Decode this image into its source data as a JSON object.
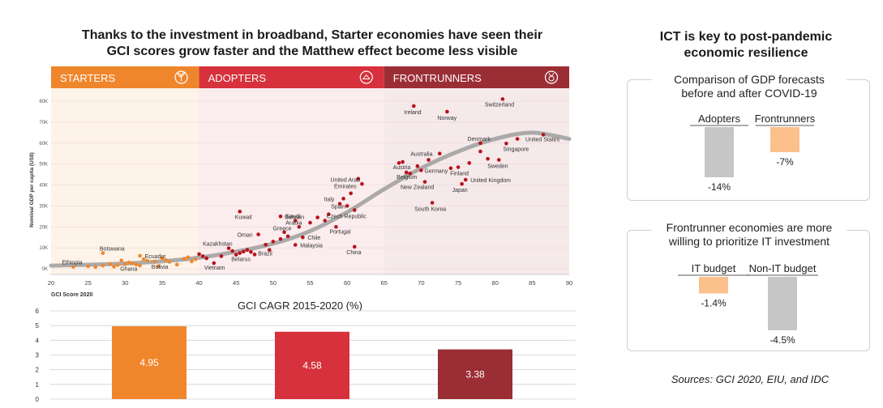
{
  "title": {
    "line1": "Thanks to the investment in broadband, Starter economies have seen their",
    "line2": "GCI scores grow faster and the Matthew effect become less visible"
  },
  "colors": {
    "starters": "#f0862c",
    "adopters": "#d6313c",
    "frontrunners": "#9b2d35",
    "starters_bg": "#fdf3e8",
    "adopters_bg": "#fbecee",
    "frontrunners_bg": "#f6e9ea",
    "dot": "#b8121c",
    "dot_starter": "#f0862c",
    "curve": "#9e9e9e",
    "gray_bar": "#c6c6c6",
    "orange_bar": "#fcc08d"
  },
  "bands": [
    {
      "label": "STARTERS",
      "icon": "plant-icon",
      "x_start": 20,
      "x_end": 40
    },
    {
      "label": "ADOPTERS",
      "icon": "network-icon",
      "x_start": 40,
      "x_end": 65
    },
    {
      "label": "FRONTRUNNERS",
      "icon": "medal-icon",
      "x_start": 65,
      "x_end": 90
    }
  ],
  "chart_data": [
    {
      "type": "scatter",
      "title": "",
      "xlabel": "GCI Score 2020",
      "ylabel": "Nominal GDP per capita (US$)",
      "xlim": [
        20,
        90
      ],
      "ylim": [
        0,
        80000
      ],
      "x_ticks": [
        "20",
        "25",
        "30",
        "35",
        "40",
        "45",
        "50",
        "55",
        "60",
        "65",
        "70",
        "75",
        "80",
        "85",
        "90"
      ],
      "y_ticks": [
        "0K",
        "10K",
        "20K",
        "30K",
        "40K",
        "50K",
        "60K",
        "70K",
        "80K"
      ],
      "trend_curve": [
        [
          20,
          1500
        ],
        [
          30,
          2500
        ],
        [
          38,
          4500
        ],
        [
          44,
          7500
        ],
        [
          50,
          12000
        ],
        [
          55,
          18000
        ],
        [
          60,
          27000
        ],
        [
          65,
          38000
        ],
        [
          70,
          48000
        ],
        [
          75,
          56000
        ],
        [
          80,
          62000
        ],
        [
          85,
          65000
        ],
        [
          90,
          62000
        ]
      ],
      "labeled_points": [
        {
          "name": "Ethiopia",
          "x": 23,
          "y": 900
        },
        {
          "name": "Botswana",
          "x": 27,
          "y": 7500
        },
        {
          "name": "Ecuador",
          "x": 32,
          "y": 6200
        },
        {
          "name": "Ghana",
          "x": 30,
          "y": 2200
        },
        {
          "name": "Bolivia",
          "x": 34,
          "y": 3500
        },
        {
          "name": "Kazakhstan",
          "x": 44,
          "y": 9800
        },
        {
          "name": "Belarus",
          "x": 45,
          "y": 6700
        },
        {
          "name": "Vietnam",
          "x": 42,
          "y": 2700
        },
        {
          "name": "Kuwait",
          "x": 45.5,
          "y": 27300
        },
        {
          "name": "Oman",
          "x": 48,
          "y": 16400
        },
        {
          "name": "Brazil",
          "x": 49.5,
          "y": 9000
        },
        {
          "name": "Bahrain",
          "x": 51,
          "y": 25000
        },
        {
          "name": "Saudi Arabia",
          "x": 53,
          "y": 23000
        },
        {
          "name": "Greece",
          "x": 51.5,
          "y": 17500
        },
        {
          "name": "Chile",
          "x": 54,
          "y": 15000
        },
        {
          "name": "Malaysia",
          "x": 53,
          "y": 11400
        },
        {
          "name": "Czech Republic",
          "x": 57,
          "y": 23000
        },
        {
          "name": "Portugal",
          "x": 58.5,
          "y": 20000
        },
        {
          "name": "Spain",
          "x": 60,
          "y": 30000
        },
        {
          "name": "Italy",
          "x": 59.5,
          "y": 33500
        },
        {
          "name": "United Arab Emirates",
          "x": 61.5,
          "y": 43000
        },
        {
          "name": "China",
          "x": 61,
          "y": 10500
        },
        {
          "name": "Ireland",
          "x": 69,
          "y": 77700
        },
        {
          "name": "Norway",
          "x": 73.5,
          "y": 75000
        },
        {
          "name": "Switzerland",
          "x": 81,
          "y": 81000
        },
        {
          "name": "Denmark",
          "x": 78,
          "y": 60000
        },
        {
          "name": "Australia",
          "x": 72.5,
          "y": 55000
        },
        {
          "name": "United States",
          "x": 86.5,
          "y": 64000
        },
        {
          "name": "Singapore",
          "x": 81.5,
          "y": 59800
        },
        {
          "name": "Sweden",
          "x": 80.5,
          "y": 52000
        },
        {
          "name": "Austria",
          "x": 67.5,
          "y": 51000
        },
        {
          "name": "Belgium",
          "x": 68,
          "y": 46000
        },
        {
          "name": "Germany",
          "x": 70,
          "y": 47000
        },
        {
          "name": "Finland",
          "x": 75,
          "y": 48500
        },
        {
          "name": "United Kingdom",
          "x": 76,
          "y": 42500
        },
        {
          "name": "New Zealand",
          "x": 70.5,
          "y": 41500
        },
        {
          "name": "Japan",
          "x": 75.5,
          "y": 40500
        },
        {
          "name": "South Korea",
          "x": 71.5,
          "y": 31500
        }
      ],
      "unlabeled_points": [
        [
          25,
          1200
        ],
        [
          26,
          800
        ],
        [
          27,
          1500
        ],
        [
          28,
          2200
        ],
        [
          28.5,
          1000
        ],
        [
          29,
          1800
        ],
        [
          30.5,
          3000
        ],
        [
          31,
          2500
        ],
        [
          31.5,
          2000
        ],
        [
          32,
          1500
        ],
        [
          33,
          3800
        ],
        [
          34.5,
          1200
        ],
        [
          35,
          5000
        ],
        [
          35.5,
          4200
        ],
        [
          36,
          3300
        ],
        [
          37,
          2000
        ],
        [
          38,
          4800
        ],
        [
          38.5,
          5500
        ],
        [
          39,
          3500
        ],
        [
          39.5,
          4500
        ],
        [
          32.5,
          4500
        ],
        [
          29.5,
          4000
        ],
        [
          40,
          7000
        ],
        [
          40.5,
          6000
        ],
        [
          41,
          5000
        ],
        [
          43,
          6000
        ],
        [
          44.5,
          8500
        ],
        [
          45.5,
          7500
        ],
        [
          46,
          8200
        ],
        [
          46.5,
          9000
        ],
        [
          47,
          8000
        ],
        [
          47.5,
          6800
        ],
        [
          49,
          11500
        ],
        [
          50,
          13000
        ],
        [
          51,
          14200
        ],
        [
          52,
          15500
        ],
        [
          53.5,
          20000
        ],
        [
          55,
          22000
        ],
        [
          56,
          24500
        ],
        [
          57.5,
          26000
        ],
        [
          59,
          31000
        ],
        [
          60.5,
          36000
        ],
        [
          61,
          28000
        ],
        [
          62,
          40500
        ],
        [
          67,
          50500
        ],
        [
          68.5,
          45500
        ],
        [
          69.5,
          49000
        ],
        [
          71,
          52000
        ],
        [
          74,
          48000
        ],
        [
          76.5,
          50500
        ],
        [
          78,
          56000
        ],
        [
          79,
          52500
        ],
        [
          83,
          62000
        ]
      ]
    },
    {
      "type": "bar",
      "title": "GCI CAGR 2015-2020 (%)",
      "categories": [
        "Starters",
        "Adopters",
        "Frontrunners"
      ],
      "values": [
        4.95,
        4.58,
        3.38
      ],
      "value_labels": [
        "4.95",
        "4.58",
        "3.38"
      ],
      "ylim": [
        0,
        6
      ],
      "y_ticks": [
        "0",
        "1",
        "2",
        "3",
        "4",
        "5",
        "6"
      ]
    }
  ],
  "right": {
    "title_line1": "ICT is key to post-pandemic",
    "title_line2": "economic resilience",
    "panel1": {
      "title_line1": "Comparison of GDP forecasts",
      "title_line2": "before and after COVID-19",
      "bars": [
        {
          "label": "Adopters",
          "value": -14,
          "value_label": "-14%"
        },
        {
          "label": "Frontrunners",
          "value": -7,
          "value_label": "-7%"
        }
      ]
    },
    "panel2": {
      "title_line1": "Frontrunner economies are more",
      "title_line2": "willing to prioritize IT investment",
      "bars": [
        {
          "label": "IT budget",
          "value": -1.4,
          "value_label": "-1.4%"
        },
        {
          "label": "Non-IT budget",
          "value": -4.5,
          "value_label": "-4.5%"
        }
      ]
    },
    "source": "Sources: GCI 2020, EIU, and IDC"
  }
}
